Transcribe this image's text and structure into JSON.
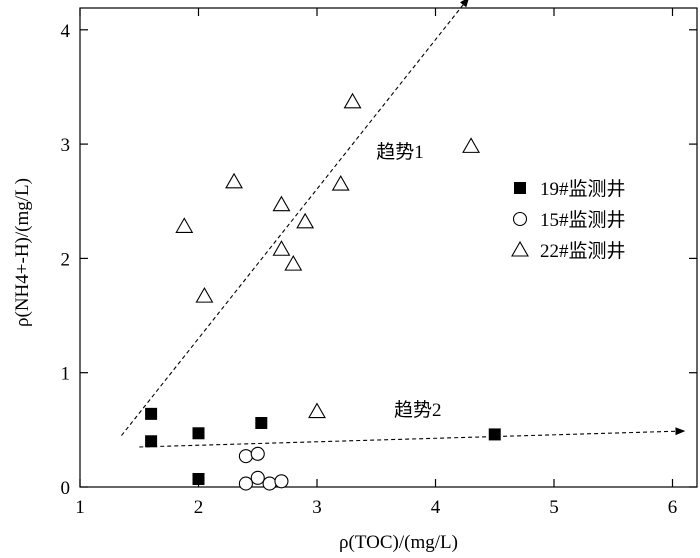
{
  "chart_data": {
    "type": "scatter",
    "xlabel": "ρ(TOC)/(mg/L)",
    "ylabel": "ρ(NH4+-H)/(mg/L)",
    "xlim": [
      1,
      6.2
    ],
    "ylim": [
      0,
      4.3
    ],
    "x_ticks": [
      "1",
      "2",
      "3",
      "4",
      "5",
      "6"
    ],
    "y_ticks": [
      "0",
      "1",
      "2",
      "3",
      "4"
    ],
    "series": [
      {
        "name": "19#监测井",
        "marker": "filled-square",
        "color": "#000000",
        "points": [
          [
            1.6,
            0.64
          ],
          [
            1.6,
            0.4
          ],
          [
            2.0,
            0.47
          ],
          [
            2.0,
            0.07
          ],
          [
            2.53,
            0.56
          ],
          [
            4.5,
            0.46
          ]
        ]
      },
      {
        "name": "15#监测井",
        "marker": "open-circle",
        "color": "#000000",
        "points": [
          [
            2.4,
            0.27
          ],
          [
            2.5,
            0.29
          ],
          [
            2.5,
            0.08
          ],
          [
            2.4,
            0.03
          ],
          [
            2.6,
            0.03
          ],
          [
            2.7,
            0.05
          ]
        ]
      },
      {
        "name": "22#监测井",
        "marker": "open-triangle",
        "color": "#000000",
        "points": [
          [
            1.88,
            2.28
          ],
          [
            2.05,
            1.67
          ],
          [
            2.3,
            2.67
          ],
          [
            2.7,
            2.47
          ],
          [
            2.7,
            2.08
          ],
          [
            2.8,
            1.95
          ],
          [
            2.9,
            2.32
          ],
          [
            3.2,
            2.65
          ],
          [
            3.3,
            3.37
          ],
          [
            3.0,
            0.66
          ],
          [
            4.3,
            2.98
          ]
        ]
      }
    ],
    "trendlines": [
      {
        "label": "趋势1",
        "from": [
          1.35,
          0.45
        ],
        "to": [
          4.28,
          4.28
        ]
      },
      {
        "label": "趋势2",
        "from": [
          1.5,
          0.35
        ],
        "to": [
          6.1,
          0.49
        ]
      }
    ],
    "annotations": [
      {
        "text": "趋势1",
        "x": 3.7,
        "y": 2.88
      },
      {
        "text": "趋势2",
        "x": 3.85,
        "y": 0.62
      }
    ],
    "legend_position": "right-middle",
    "grid": false
  }
}
